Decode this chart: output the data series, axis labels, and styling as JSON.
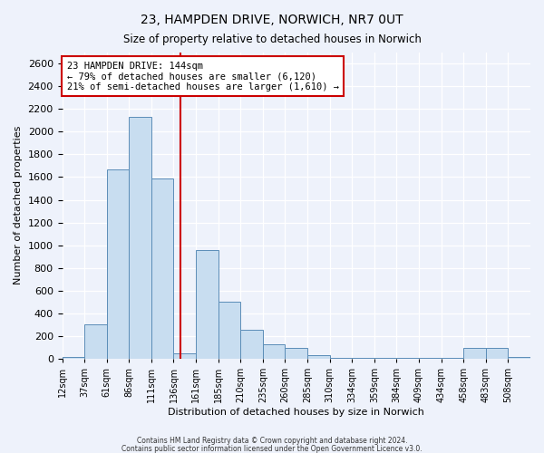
{
  "title": "23, HAMPDEN DRIVE, NORWICH, NR7 0UT",
  "subtitle": "Size of property relative to detached houses in Norwich",
  "xlabel": "Distribution of detached houses by size in Norwich",
  "ylabel": "Number of detached properties",
  "bin_labels": [
    "12sqm",
    "37sqm",
    "61sqm",
    "86sqm",
    "111sqm",
    "136sqm",
    "161sqm",
    "185sqm",
    "210sqm",
    "235sqm",
    "260sqm",
    "285sqm",
    "310sqm",
    "334sqm",
    "359sqm",
    "384sqm",
    "409sqm",
    "434sqm",
    "458sqm",
    "483sqm",
    "508sqm"
  ],
  "bar_heights": [
    20,
    300,
    1670,
    2130,
    1590,
    50,
    960,
    500,
    255,
    125,
    100,
    30,
    10,
    5,
    5,
    5,
    5,
    5,
    100,
    100,
    20
  ],
  "bar_color": "#c8ddf0",
  "bar_edge_color": "#5b8db8",
  "bar_alpha": 1.0,
  "vline_color": "#cc0000",
  "annotation_text": "23 HAMPDEN DRIVE: 144sqm\n← 79% of detached houses are smaller (6,120)\n21% of semi-detached houses are larger (1,610) →",
  "annotation_box_color": "#ffffff",
  "annotation_border_color": "#cc0000",
  "ylim": [
    0,
    2700
  ],
  "yticks": [
    0,
    200,
    400,
    600,
    800,
    1000,
    1200,
    1400,
    1600,
    1800,
    2000,
    2200,
    2400,
    2600
  ],
  "footer1": "Contains HM Land Registry data © Crown copyright and database right 2024.",
  "footer2": "Contains public sector information licensed under the Open Government Licence v3.0.",
  "bg_color": "#eef2fb",
  "plot_bg_color": "#eef2fb",
  "title_fontsize": 10,
  "subtitle_fontsize": 8.5,
  "ylabel_fontsize": 8,
  "xlabel_fontsize": 8
}
